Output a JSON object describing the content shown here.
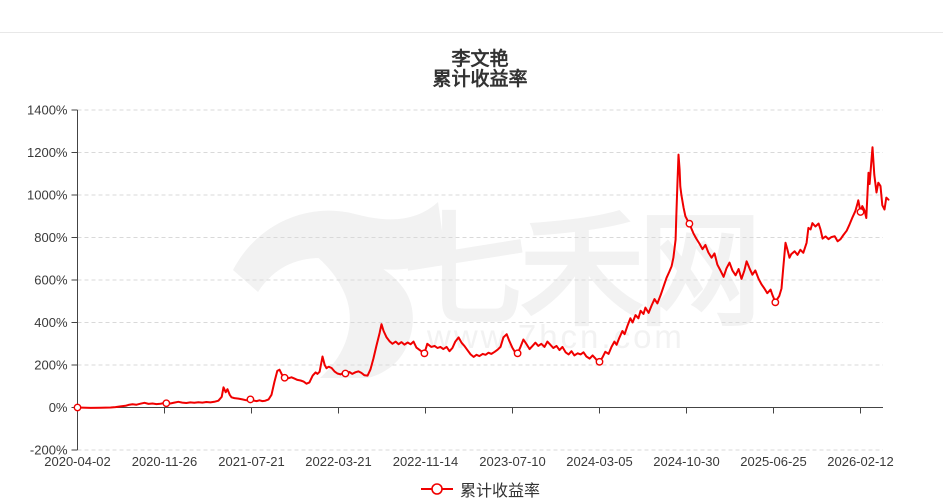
{
  "header": {
    "title_line1": "李文艳",
    "title_line2": "累计收益率"
  },
  "legend": {
    "label": "累计收益率"
  },
  "watermark": {
    "site_name": "七禾网",
    "site_url": "www.7hcn.com",
    "logo_glyph": "7",
    "color": "#f2f2f2"
  },
  "chart_data": {
    "type": "line",
    "title": "李文艳",
    "subtitle": "累计收益率",
    "series_name": "累计收益率",
    "unit": "percent",
    "ylim": [
      -200,
      1400
    ],
    "y_tick_values": [
      1400,
      1200,
      1000,
      800,
      600,
      400,
      200,
      0,
      -200
    ],
    "y_tick_suffix": "%",
    "x_tick_labels": [
      "2020-04-02",
      "2020-11-26",
      "2021-07-21",
      "2022-03-21",
      "2022-11-14",
      "2023-07-10",
      "2024-03-05",
      "2024-10-30",
      "2025-06-25",
      "2026-02-12"
    ],
    "x_tick_days": [
      0,
      239,
      478,
      717,
      956,
      1195,
      1434,
      1673,
      1912,
      2151
    ],
    "grid": "horizontal dashed",
    "legend_position": "bottom",
    "line_color": "#f00000",
    "axis_color": "#444444",
    "grid_color": "#d9d9d9",
    "label_color": "#3a3a3a",
    "series": [
      {
        "name": "累计收益率",
        "points": [
          [
            0,
            0
          ],
          [
            36,
            -2
          ],
          [
            63,
            -1
          ],
          [
            91,
            0
          ],
          [
            104,
            2
          ],
          [
            118,
            5
          ],
          [
            132,
            8
          ],
          [
            140,
            12
          ],
          [
            151,
            15
          ],
          [
            162,
            13
          ],
          [
            173,
            18
          ],
          [
            184,
            22
          ],
          [
            195,
            17
          ],
          [
            206,
            19
          ],
          [
            217,
            16
          ],
          [
            228,
            18
          ],
          [
            236,
            20
          ],
          [
            244,
            20
          ],
          [
            255,
            19
          ],
          [
            266,
            23
          ],
          [
            277,
            27
          ],
          [
            288,
            23
          ],
          [
            299,
            21
          ],
          [
            310,
            24
          ],
          [
            321,
            22
          ],
          [
            332,
            25
          ],
          [
            343,
            23
          ],
          [
            354,
            26
          ],
          [
            365,
            24
          ],
          [
            376,
            27
          ],
          [
            387,
            32
          ],
          [
            396,
            50
          ],
          [
            401,
            95
          ],
          [
            407,
            72
          ],
          [
            412,
            86
          ],
          [
            418,
            60
          ],
          [
            423,
            48
          ],
          [
            431,
            44
          ],
          [
            442,
            42
          ],
          [
            453,
            38
          ],
          [
            464,
            34
          ],
          [
            470,
            36
          ],
          [
            475,
            38
          ],
          [
            483,
            33
          ],
          [
            492,
            30
          ],
          [
            500,
            34
          ],
          [
            508,
            30
          ],
          [
            516,
            32
          ],
          [
            525,
            38
          ],
          [
            533,
            60
          ],
          [
            541,
            120
          ],
          [
            549,
            172
          ],
          [
            555,
            178
          ],
          [
            563,
            150
          ],
          [
            569,
            140
          ],
          [
            580,
            138
          ],
          [
            588,
            142
          ],
          [
            596,
            136
          ],
          [
            604,
            130
          ],
          [
            613,
            127
          ],
          [
            621,
            122
          ],
          [
            629,
            112
          ],
          [
            637,
            118
          ],
          [
            646,
            150
          ],
          [
            654,
            165
          ],
          [
            659,
            158
          ],
          [
            665,
            168
          ],
          [
            673,
            240
          ],
          [
            679,
            200
          ],
          [
            684,
            185
          ],
          [
            690,
            192
          ],
          [
            698,
            186
          ],
          [
            706,
            170
          ],
          [
            714,
            160
          ],
          [
            723,
            156
          ],
          [
            731,
            164
          ],
          [
            739,
            158
          ],
          [
            747,
            167
          ],
          [
            755,
            158
          ],
          [
            764,
            166
          ],
          [
            772,
            170
          ],
          [
            780,
            163
          ],
          [
            788,
            152
          ],
          [
            797,
            150
          ],
          [
            805,
            180
          ],
          [
            813,
            230
          ],
          [
            821,
            290
          ],
          [
            830,
            350
          ],
          [
            835,
            392
          ],
          [
            841,
            360
          ],
          [
            849,
            330
          ],
          [
            857,
            312
          ],
          [
            865,
            300
          ],
          [
            874,
            310
          ],
          [
            882,
            298
          ],
          [
            890,
            308
          ],
          [
            898,
            296
          ],
          [
            907,
            306
          ],
          [
            915,
            298
          ],
          [
            923,
            310
          ],
          [
            931,
            282
          ],
          [
            942,
            268
          ],
          [
            953,
            255
          ],
          [
            961,
            300
          ],
          [
            972,
            285
          ],
          [
            981,
            290
          ],
          [
            989,
            280
          ],
          [
            997,
            285
          ],
          [
            1005,
            275
          ],
          [
            1014,
            285
          ],
          [
            1022,
            265
          ],
          [
            1030,
            280
          ],
          [
            1038,
            310
          ],
          [
            1047,
            330
          ],
          [
            1055,
            305
          ],
          [
            1063,
            290
          ],
          [
            1071,
            270
          ],
          [
            1080,
            250
          ],
          [
            1088,
            238
          ],
          [
            1096,
            248
          ],
          [
            1104,
            242
          ],
          [
            1113,
            252
          ],
          [
            1121,
            248
          ],
          [
            1129,
            258
          ],
          [
            1137,
            252
          ],
          [
            1146,
            262
          ],
          [
            1154,
            272
          ],
          [
            1162,
            285
          ],
          [
            1170,
            330
          ],
          [
            1179,
            345
          ],
          [
            1187,
            310
          ],
          [
            1195,
            280
          ],
          [
            1203,
            258
          ],
          [
            1209,
            255
          ],
          [
            1217,
            285
          ],
          [
            1225,
            320
          ],
          [
            1233,
            300
          ],
          [
            1242,
            275
          ],
          [
            1250,
            290
          ],
          [
            1258,
            305
          ],
          [
            1266,
            290
          ],
          [
            1274,
            300
          ],
          [
            1283,
            285
          ],
          [
            1291,
            310
          ],
          [
            1299,
            295
          ],
          [
            1307,
            280
          ],
          [
            1316,
            290
          ],
          [
            1324,
            270
          ],
          [
            1332,
            285
          ],
          [
            1341,
            260
          ],
          [
            1349,
            250
          ],
          [
            1357,
            265
          ],
          [
            1365,
            245
          ],
          [
            1374,
            255
          ],
          [
            1382,
            250
          ],
          [
            1390,
            260
          ],
          [
            1398,
            240
          ],
          [
            1407,
            230
          ],
          [
            1415,
            245
          ],
          [
            1423,
            230
          ],
          [
            1428,
            220
          ],
          [
            1434,
            215
          ],
          [
            1442,
            235
          ],
          [
            1450,
            262
          ],
          [
            1459,
            252
          ],
          [
            1467,
            285
          ],
          [
            1475,
            310
          ],
          [
            1481,
            295
          ],
          [
            1489,
            330
          ],
          [
            1497,
            360
          ],
          [
            1503,
            345
          ],
          [
            1511,
            385
          ],
          [
            1519,
            420
          ],
          [
            1525,
            400
          ],
          [
            1533,
            435
          ],
          [
            1541,
            420
          ],
          [
            1547,
            455
          ],
          [
            1555,
            440
          ],
          [
            1560,
            470
          ],
          [
            1569,
            445
          ],
          [
            1577,
            480
          ],
          [
            1585,
            510
          ],
          [
            1593,
            490
          ],
          [
            1602,
            530
          ],
          [
            1610,
            570
          ],
          [
            1618,
            610
          ],
          [
            1626,
            640
          ],
          [
            1632,
            665
          ],
          [
            1637,
            705
          ],
          [
            1643,
            790
          ],
          [
            1645,
            900
          ],
          [
            1648,
            1050
          ],
          [
            1651,
            1190
          ],
          [
            1654,
            1120
          ],
          [
            1656,
            1040
          ],
          [
            1659,
            1000
          ],
          [
            1665,
            940
          ],
          [
            1670,
            900
          ],
          [
            1676,
            880
          ],
          [
            1681,
            865
          ],
          [
            1687,
            840
          ],
          [
            1692,
            820
          ],
          [
            1700,
            795
          ],
          [
            1709,
            770
          ],
          [
            1717,
            745
          ],
          [
            1725,
            765
          ],
          [
            1733,
            730
          ],
          [
            1742,
            705
          ],
          [
            1750,
            725
          ],
          [
            1758,
            672
          ],
          [
            1766,
            645
          ],
          [
            1775,
            615
          ],
          [
            1783,
            655
          ],
          [
            1791,
            682
          ],
          [
            1799,
            645
          ],
          [
            1808,
            622
          ],
          [
            1816,
            652
          ],
          [
            1824,
            605
          ],
          [
            1832,
            645
          ],
          [
            1838,
            688
          ],
          [
            1846,
            655
          ],
          [
            1854,
            625
          ],
          [
            1862,
            645
          ],
          [
            1871,
            605
          ],
          [
            1879,
            580
          ],
          [
            1887,
            560
          ],
          [
            1895,
            538
          ],
          [
            1904,
            555
          ],
          [
            1909,
            530
          ],
          [
            1915,
            505
          ],
          [
            1917,
            495
          ],
          [
            1923,
            512
          ],
          [
            1928,
            525
          ],
          [
            1934,
            560
          ],
          [
            1939,
            660
          ],
          [
            1945,
            775
          ],
          [
            1950,
            745
          ],
          [
            1956,
            705
          ],
          [
            1961,
            722
          ],
          [
            1970,
            735
          ],
          [
            1978,
            718
          ],
          [
            1986,
            742
          ],
          [
            1994,
            728
          ],
          [
            2003,
            775
          ],
          [
            2008,
            845
          ],
          [
            2014,
            838
          ],
          [
            2019,
            868
          ],
          [
            2027,
            852
          ],
          [
            2036,
            866
          ],
          [
            2041,
            838
          ],
          [
            2047,
            795
          ],
          [
            2055,
            805
          ],
          [
            2063,
            792
          ],
          [
            2071,
            802
          ],
          [
            2080,
            806
          ],
          [
            2088,
            782
          ],
          [
            2096,
            792
          ],
          [
            2104,
            812
          ],
          [
            2113,
            832
          ],
          [
            2121,
            862
          ],
          [
            2129,
            895
          ],
          [
            2137,
            925
          ],
          [
            2143,
            962
          ],
          [
            2145,
            975
          ],
          [
            2151,
            920
          ],
          [
            2156,
            948
          ],
          [
            2162,
            928
          ],
          [
            2167,
            892
          ],
          [
            2173,
            1105
          ],
          [
            2176,
            1052
          ],
          [
            2181,
            1160
          ],
          [
            2184,
            1225
          ],
          [
            2189,
            1095
          ],
          [
            2195,
            1012
          ],
          [
            2200,
            1058
          ],
          [
            2206,
            1042
          ],
          [
            2211,
            952
          ],
          [
            2217,
            932
          ],
          [
            2222,
            988
          ],
          [
            2228,
            978
          ]
        ]
      }
    ],
    "markers": [
      [
        0,
        0
      ],
      [
        244,
        20
      ],
      [
        475,
        38
      ],
      [
        569,
        140
      ],
      [
        736,
        160
      ],
      [
        953,
        255
      ],
      [
        1209,
        255
      ],
      [
        1434,
        215
      ],
      [
        1681,
        865
      ],
      [
        1917,
        495
      ],
      [
        2151,
        920
      ]
    ]
  }
}
